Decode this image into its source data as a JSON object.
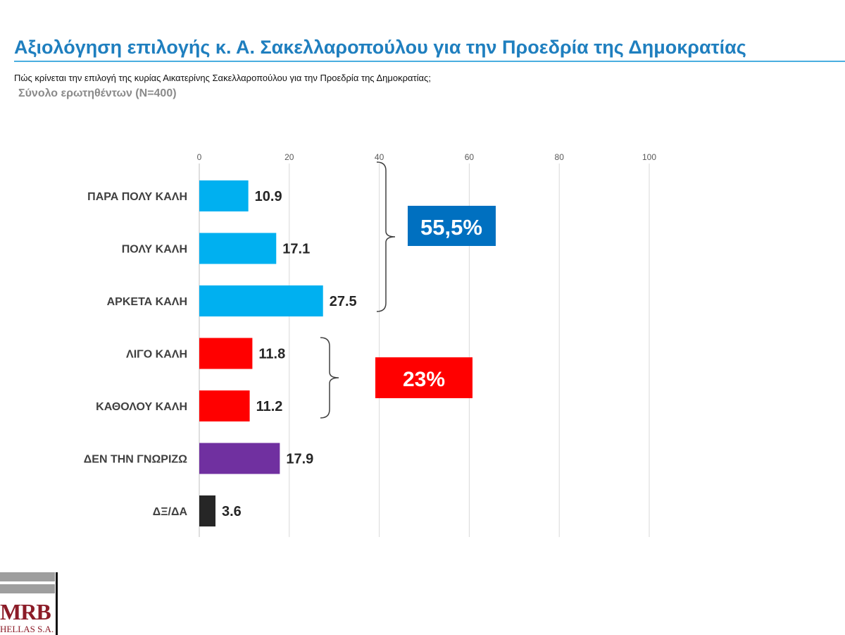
{
  "header": {
    "title": "Αξιολόγηση επιλογής κ. Α. Σακελλαροπούλου για την Προεδρία της Δημοκρατίας",
    "question": "Πώς κρίνεται την επιλογή της κυρίας Αικατερίνης Σακελλαροπούλου για την Προεδρία της Δημοκρατίας;",
    "base": "Σύνολο ερωτηθέντων (Ν=400)"
  },
  "chart_data": {
    "type": "bar",
    "orientation": "horizontal",
    "categories": [
      "ΠΑΡΑ ΠΟΛΥ ΚΑΛΗ",
      "ΠΟΛΥ ΚΑΛΗ",
      "ΑΡΚΕΤΑ ΚΑΛΗ",
      "ΛΙΓΟ ΚΑΛΗ",
      "ΚΑΘΟΛΟΥ ΚΑΛΗ",
      "ΔΕΝ ΤΗΝ ΓΝΩΡΙΖΩ",
      "ΔΞ/ΔΑ"
    ],
    "values": [
      10.9,
      17.1,
      27.5,
      11.8,
      11.2,
      17.9,
      3.6
    ],
    "value_labels": [
      "10.9",
      "17.1",
      "27.5",
      "11.8",
      "11.2",
      "17.9",
      "3.6"
    ],
    "colors": [
      "#00b0f0",
      "#00b0f0",
      "#00b0f0",
      "#ff0000",
      "#ff0000",
      "#7030a0",
      "#262626"
    ],
    "xlim": [
      0,
      100
    ],
    "ticks": [
      0,
      20,
      40,
      60,
      80,
      100
    ],
    "tick_labels": [
      "0",
      "20",
      "40",
      "60",
      "80",
      "100"
    ],
    "axis_position": "top",
    "grid": true,
    "title": "",
    "xlabel": "",
    "ylabel": "",
    "annotations": [
      {
        "label": "55,5%",
        "spans": [
          "ΠΑΡΑ ΠΟΛΥ ΚΑΛΗ",
          "ΠΟΛΥ ΚΑΛΗ",
          "ΑΡΚΕΤΑ ΚΑΛΗ"
        ],
        "color": "#0070c0"
      },
      {
        "label": "23%",
        "spans": [
          "ΛΙΓΟ ΚΑΛΗ",
          "ΚΑΘΟΛΟΥ ΚΑΛΗ"
        ],
        "color": "#ff0000"
      }
    ]
  },
  "logo": {
    "name": "MRB",
    "subtitle": "HELLAS S.A."
  }
}
